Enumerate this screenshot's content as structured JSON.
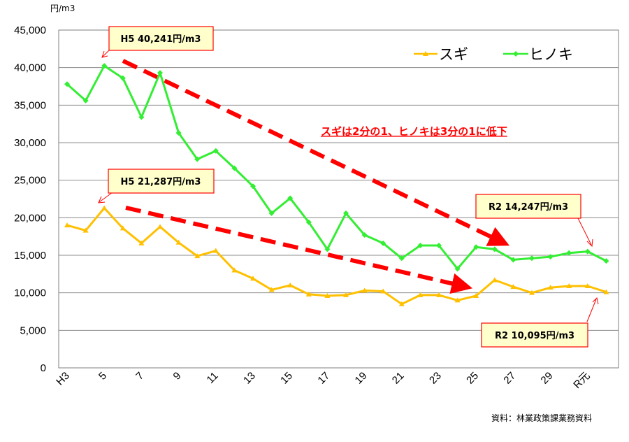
{
  "chart_data": {
    "type": "line",
    "ylabel": "円/m3",
    "ylim": [
      0,
      45000
    ],
    "yticks": [
      0,
      5000,
      10000,
      15000,
      20000,
      25000,
      30000,
      35000,
      40000,
      45000
    ],
    "ytick_labels": [
      "0",
      "5,000",
      "10,000",
      "15,000",
      "20,000",
      "25,000",
      "30,000",
      "35,000",
      "40,000",
      "45,000"
    ],
    "grid": true,
    "legend_position": "top-right",
    "x": [
      "H3",
      "H4",
      "H5",
      "H6",
      "H7",
      "H8",
      "H9",
      "H10",
      "H11",
      "H12",
      "H13",
      "H14",
      "H15",
      "H16",
      "H17",
      "H18",
      "H19",
      "H20",
      "H21",
      "H22",
      "H23",
      "H24",
      "H25",
      "H26",
      "H27",
      "H28",
      "H29",
      "H30",
      "R元",
      "R2"
    ],
    "xtick_labels": [
      "H3",
      "5",
      "7",
      "9",
      "11",
      "13",
      "15",
      "17",
      "19",
      "21",
      "23",
      "25",
      "27",
      "29",
      "R元"
    ],
    "series": [
      {
        "name": "スギ",
        "color": "#ffc000",
        "values": [
          19000,
          18300,
          21287,
          18600,
          16600,
          18800,
          16700,
          14900,
          15600,
          13000,
          11900,
          10400,
          11000,
          9800,
          9600,
          9700,
          10300,
          10200,
          8500,
          9700,
          9700,
          9000,
          9600,
          11700,
          10800,
          10000,
          10700,
          10900,
          10900,
          10095
        ]
      },
      {
        "name": "ヒノキ",
        "color": "#33ee33",
        "values": [
          37800,
          35600,
          40241,
          38600,
          33400,
          39300,
          31300,
          27800,
          28900,
          26600,
          24200,
          20600,
          22600,
          19400,
          15800,
          20600,
          17700,
          16600,
          14600,
          16300,
          16300,
          13200,
          16100,
          15800,
          14400,
          14600,
          14800,
          15300,
          15500,
          14247
        ]
      }
    ],
    "annotations": [
      {
        "text": "H5 40,241円/m3",
        "x": "H5",
        "y": 40241
      },
      {
        "text": "H5 21,287円/m3",
        "x": "H5",
        "y": 21287
      },
      {
        "text": "R2 14,247円/m3",
        "x": "R2",
        "y": 14247
      },
      {
        "text": "R2 10,095円/m3",
        "x": "R2",
        "y": 10095
      }
    ],
    "note": "スギは2分の1、ヒノキは3分の1に低下",
    "source": "資料：林業政策課業務資料"
  }
}
